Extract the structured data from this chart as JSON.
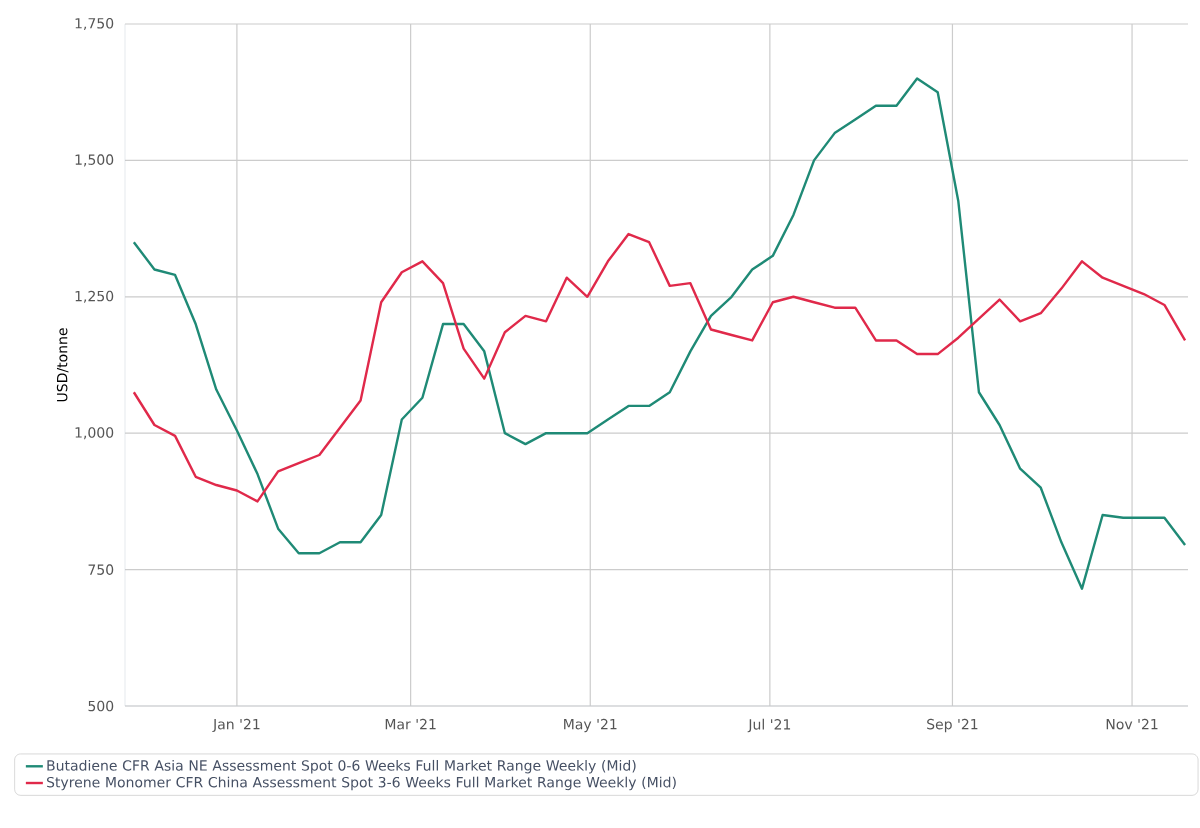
{
  "chart_data": {
    "type": "line",
    "ylabel": "USD/tonne",
    "x": [
      "2020-11-27",
      "2020-12-04",
      "2020-12-11",
      "2020-12-18",
      "2020-12-25",
      "2021-01-01",
      "2021-01-08",
      "2021-01-15",
      "2021-01-22",
      "2021-01-29",
      "2021-02-05",
      "2021-02-12",
      "2021-02-19",
      "2021-02-26",
      "2021-03-05",
      "2021-03-12",
      "2021-03-19",
      "2021-03-26",
      "2021-04-02",
      "2021-04-09",
      "2021-04-16",
      "2021-04-23",
      "2021-04-30",
      "2021-05-07",
      "2021-05-14",
      "2021-05-21",
      "2021-05-28",
      "2021-06-04",
      "2021-06-11",
      "2021-06-18",
      "2021-06-25",
      "2021-07-02",
      "2021-07-09",
      "2021-07-16",
      "2021-07-23",
      "2021-07-30",
      "2021-08-06",
      "2021-08-13",
      "2021-08-20",
      "2021-08-27",
      "2021-09-03",
      "2021-09-10",
      "2021-09-17",
      "2021-09-24",
      "2021-10-01",
      "2021-10-08",
      "2021-10-15",
      "2021-10-22",
      "2021-10-29",
      "2021-11-05",
      "2021-11-12",
      "2021-11-19"
    ],
    "series": [
      {
        "name": "Butadiene CFR Asia NE Assessment Spot 0-6 Weeks Full Market Range Weekly (Mid)",
        "color": "#1f8a76",
        "values": [
          1350,
          1300,
          1290,
          1200,
          1080,
          1005,
          925,
          825,
          780,
          780,
          800,
          800,
          850,
          1025,
          1065,
          1200,
          1200,
          1150,
          1000,
          980,
          1000,
          1000,
          1000,
          1025,
          1050,
          1050,
          1075,
          1150,
          1215,
          1250,
          1300,
          1325,
          1400,
          1500,
          1550,
          1575,
          1600,
          1600,
          1650,
          1625,
          1425,
          1075,
          1015,
          935,
          900,
          800,
          715,
          850,
          845,
          845,
          845,
          795
        ]
      },
      {
        "name": "Styrene Monomer CFR China Assessment Spot 3-6 Weeks Full Market Range Weekly (Mid)",
        "color": "#e0294a",
        "values": [
          1075,
          1015,
          995,
          920,
          905,
          895,
          875,
          930,
          945,
          960,
          1010,
          1060,
          1240,
          1295,
          1315,
          1275,
          1155,
          1100,
          1185,
          1215,
          1205,
          1285,
          1250,
          1315,
          1365,
          1350,
          1270,
          1275,
          1190,
          1180,
          1170,
          1240,
          1250,
          1240,
          1230,
          1230,
          1170,
          1170,
          1145,
          1145,
          1175,
          1210,
          1245,
          1205,
          1220,
          1265,
          1315,
          1285,
          1270,
          1255,
          1235,
          1170
        ]
      }
    ],
    "xlim": [
      "2020-11-24",
      "2021-11-20"
    ],
    "xticks": [
      {
        "value": "2021-01-01",
        "label": "Jan '21"
      },
      {
        "value": "2021-03-01",
        "label": "Mar '21"
      },
      {
        "value": "2021-05-01",
        "label": "May '21"
      },
      {
        "value": "2021-07-01",
        "label": "Jul '21"
      },
      {
        "value": "2021-09-01",
        "label": "Sep '21"
      },
      {
        "value": "2021-11-01",
        "label": "Nov '21"
      }
    ],
    "ylim": [
      500,
      1750
    ],
    "yticks": [
      {
        "value": 500,
        "label": "500"
      },
      {
        "value": 750,
        "label": "750"
      },
      {
        "value": 1000,
        "label": "1,000"
      },
      {
        "value": 1250,
        "label": "1,250"
      },
      {
        "value": 1500,
        "label": "1,500"
      },
      {
        "value": 1750,
        "label": "1,750"
      }
    ],
    "grid": true,
    "legend": "bottom",
    "marker": "none",
    "line_style": "solid"
  }
}
